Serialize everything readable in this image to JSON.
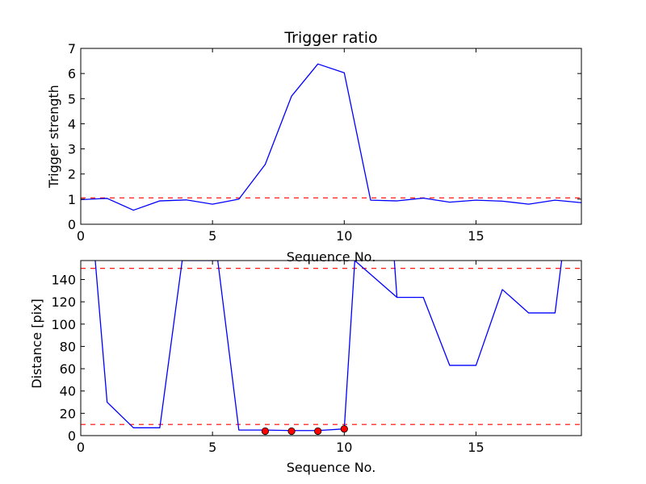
{
  "chart_data": [
    {
      "type": "line",
      "title": "Trigger ratio",
      "xlabel": "Sequence No.",
      "ylabel": "Trigger strength",
      "xlim": [
        0,
        19
      ],
      "ylim": [
        0,
        7
      ],
      "xticks": [
        0,
        5,
        10,
        15
      ],
      "yticks": [
        0,
        1,
        2,
        3,
        4,
        5,
        6,
        7
      ],
      "grid": false,
      "series": [
        {
          "color": "#0000ff",
          "x": [
            0,
            1,
            2,
            3,
            4,
            5,
            6,
            7,
            8,
            9,
            10,
            11,
            12,
            13,
            14,
            15,
            16,
            17,
            18,
            19
          ],
          "y": [
            0.98,
            1.03,
            0.56,
            0.93,
            0.97,
            0.8,
            1.0,
            2.38,
            5.1,
            6.38,
            6.03,
            0.96,
            0.93,
            1.04,
            0.88,
            0.96,
            0.92,
            0.8,
            0.96,
            0.86
          ]
        }
      ],
      "reference_lines": [
        {
          "y": 1.05,
          "color": "#ff0000",
          "style": "dashed"
        }
      ]
    },
    {
      "type": "line",
      "title": "",
      "xlabel": "Sequence No.",
      "ylabel": "Distance [pix]",
      "xlim": [
        0,
        19
      ],
      "ylim": [
        0,
        157
      ],
      "xticks": [
        0,
        5,
        10,
        15
      ],
      "yticks": [
        0,
        20,
        40,
        60,
        80,
        100,
        120,
        140
      ],
      "grid": false,
      "series": [
        {
          "color": "#0000ff",
          "x": [
            0.55,
            1,
            2,
            3,
            3.85,
            5.2,
            6,
            7,
            8,
            9,
            10,
            10.4,
            12,
            13,
            14,
            15,
            16,
            17,
            18,
            18.25
          ],
          "y": [
            157,
            30,
            7,
            7,
            157,
            157,
            5,
            5,
            4.5,
            4.5,
            6,
            157,
            124,
            124,
            63,
            63,
            131,
            110,
            110,
            157
          ]
        },
        {
          "color": "#0000ff",
          "x": [
            11.9,
            12
          ],
          "y": [
            157,
            124
          ]
        }
      ],
      "markers": {
        "color": "#ff0000",
        "x": [
          7,
          8,
          9,
          10
        ],
        "y": [
          4,
          4,
          4,
          6
        ]
      },
      "reference_lines": [
        {
          "y": 150,
          "color": "#ff0000",
          "style": "dashed"
        },
        {
          "y": 10,
          "color": "#ff0000",
          "style": "dashed"
        }
      ]
    }
  ]
}
